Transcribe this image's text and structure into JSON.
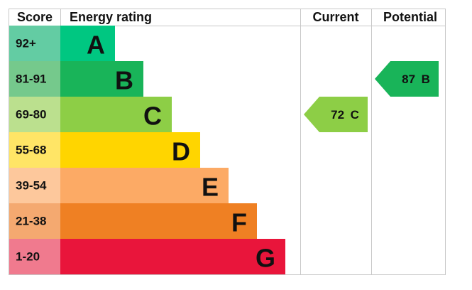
{
  "header": {
    "score": "Score",
    "rating": "Energy rating",
    "current": "Current",
    "potential": "Potential"
  },
  "bands": [
    {
      "score": "92+",
      "letter": "A",
      "color": "#00c781",
      "score_color": "#63cca3"
    },
    {
      "score": "81-91",
      "letter": "B",
      "color": "#19b459",
      "score_color": "#75c98c"
    },
    {
      "score": "69-80",
      "letter": "C",
      "color": "#8dce46",
      "score_color": "#bbe08e"
    },
    {
      "score": "55-68",
      "letter": "D",
      "color": "#ffd500",
      "score_color": "#ffe566"
    },
    {
      "score": "39-54",
      "letter": "E",
      "color": "#fcaa65",
      "score_color": "#fdc89c"
    },
    {
      "score": "21-38",
      "letter": "F",
      "color": "#ef8023",
      "score_color": "#f4a970"
    },
    {
      "score": "1-20",
      "letter": "G",
      "color": "#e9153b",
      "score_color": "#f07a8e"
    }
  ],
  "current": {
    "value": 72,
    "letter": "C"
  },
  "potential": {
    "value": 87,
    "letter": "B"
  }
}
